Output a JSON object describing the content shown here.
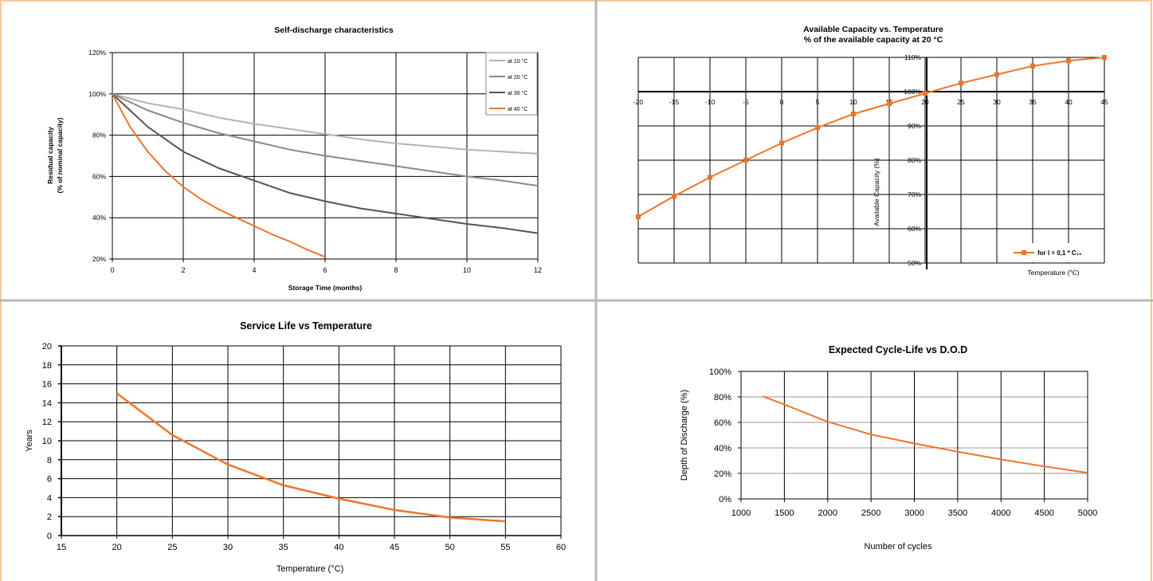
{
  "colors": {
    "border": "#f5c89a",
    "divider": "#b8b8b8",
    "grid": "#000000",
    "orange": "#f07428",
    "at10": "#b4b4b4",
    "at20": "#8a8a8a",
    "at30": "#555555"
  },
  "chart_data": [
    {
      "type": "line",
      "title": "Self-discharge characteristics",
      "xlabel": "Storage Time (months)",
      "ylabel": "Residual capacity",
      "ylabel2": "(% of nominal capacity)",
      "xlim": [
        0,
        12
      ],
      "ylim": [
        20,
        120
      ],
      "xticks": [
        0,
        2,
        4,
        6,
        8,
        10,
        12
      ],
      "xtick_labels": [
        "0",
        "2",
        "4",
        "6",
        "8",
        "10",
        "12"
      ],
      "yticks": [
        20,
        40,
        60,
        80,
        100,
        120
      ],
      "ytick_labels": [
        "20%",
        "40%",
        "60%",
        "80%",
        "100%",
        "120%"
      ],
      "grid": true,
      "legend_position": "top-right",
      "series": [
        {
          "name": "at 10 °C",
          "color_key": "at10",
          "x": [
            0,
            1,
            2,
            3,
            4,
            5,
            6,
            7,
            8,
            9,
            10,
            11,
            12
          ],
          "y": [
            100,
            95.5,
            92.5,
            88.5,
            85.5,
            83,
            80.5,
            78,
            76,
            74.5,
            73,
            72,
            71
          ]
        },
        {
          "name": "at 20 °C",
          "color_key": "at20",
          "x": [
            0,
            1,
            2,
            3,
            4,
            5,
            6,
            7,
            8,
            9,
            10,
            11,
            12
          ],
          "y": [
            100,
            92,
            86,
            81,
            77,
            73,
            70,
            67.5,
            65,
            62.5,
            60,
            58,
            55.5
          ]
        },
        {
          "name": "at 30 °C",
          "color_key": "at30",
          "x": [
            0,
            1,
            2,
            3,
            4,
            5,
            6,
            7,
            8,
            9,
            10,
            11,
            12
          ],
          "y": [
            100,
            84,
            72,
            64,
            58,
            52,
            48,
            44.5,
            42,
            39.5,
            37,
            35,
            32.5
          ]
        },
        {
          "name": "at 40 °C",
          "color_key": "orange",
          "x": [
            0,
            0.5,
            1,
            1.5,
            2,
            2.5,
            3,
            3.5,
            4,
            4.5,
            5,
            5.5,
            6
          ],
          "y": [
            100,
            84,
            72,
            62.5,
            55,
            49,
            44,
            40,
            36,
            32,
            28.5,
            24.5,
            21
          ]
        }
      ]
    },
    {
      "type": "line",
      "title": "Available Capacity vs. Temperature",
      "subtitle": "% of the available capacity at 20 °C",
      "xlabel": "Temperature (°C)",
      "ylabel": "Available Capacity (%)",
      "xlim": [
        -20,
        45
      ],
      "ylim": [
        50,
        110
      ],
      "xticks": [
        -20,
        -15,
        -10,
        -5,
        0,
        5,
        10,
        15,
        20,
        25,
        30,
        35,
        40,
        45
      ],
      "xtick_labels": [
        "-20",
        "-15",
        "-10",
        "-5",
        "0",
        "5",
        "10",
        "15",
        "20",
        "25",
        "30",
        "35",
        "40",
        "45"
      ],
      "yticks": [
        50,
        60,
        70,
        80,
        90,
        100,
        110
      ],
      "ytick_labels": [
        "50%",
        "60%",
        "70%",
        "80%",
        "90%",
        "100%",
        "110%"
      ],
      "grid": true,
      "legend_position": "bottom-right",
      "series": [
        {
          "name": "for I = 0,1 * C₁₀",
          "color_key": "orange",
          "x": [
            -20,
            -15,
            -10,
            -5,
            0,
            5,
            10,
            15,
            20,
            25,
            30,
            35,
            40,
            45
          ],
          "y": [
            63.5,
            69.5,
            75,
            80,
            85,
            89.5,
            93.5,
            96.5,
            99.5,
            102.5,
            105,
            107.5,
            109,
            110
          ]
        }
      ]
    },
    {
      "type": "line",
      "title": "Service Life vs Temperature",
      "xlabel": "Temperature (°C)",
      "ylabel": "Years",
      "xlim": [
        15,
        60
      ],
      "ylim": [
        0,
        20
      ],
      "xticks": [
        15,
        20,
        25,
        30,
        35,
        40,
        45,
        50,
        55,
        60
      ],
      "xtick_labels": [
        "15",
        "20",
        "25",
        "30",
        "35",
        "40",
        "45",
        "50",
        "55",
        "60"
      ],
      "yticks": [
        0,
        2,
        4,
        6,
        8,
        10,
        12,
        14,
        16,
        18,
        20
      ],
      "ytick_labels": [
        "0",
        "2",
        "4",
        "6",
        "8",
        "10",
        "12",
        "14",
        "16",
        "18",
        "20"
      ],
      "grid": true,
      "series": [
        {
          "color_key": "orange",
          "x": [
            20,
            25,
            30,
            35,
            40,
            45,
            50,
            55
          ],
          "y": [
            15,
            10.6,
            7.5,
            5.3,
            3.9,
            2.7,
            1.9,
            1.5
          ]
        }
      ]
    },
    {
      "type": "line",
      "title": "Expected Cycle-Life vs D.O.D",
      "xlabel": "Number of cycles",
      "ylabel": "Depth of Discharge (%)",
      "xlim": [
        1000,
        5000
      ],
      "ylim": [
        0,
        100
      ],
      "xticks": [
        1000,
        1500,
        2000,
        2500,
        3000,
        3500,
        4000,
        4500,
        5000
      ],
      "xtick_labels": [
        "1000",
        "1500",
        "2000",
        "2500",
        "3000",
        "3500",
        "4000",
        "4500",
        "5000"
      ],
      "yticks": [
        0,
        20,
        40,
        60,
        80,
        100
      ],
      "ytick_labels": [
        "0%",
        "20%",
        "40%",
        "60%",
        "80%",
        "100%"
      ],
      "grid": true,
      "series": [
        {
          "color_key": "orange",
          "x": [
            1250,
            1500,
            2000,
            2500,
            3000,
            3500,
            4000,
            4500,
            5000
          ],
          "y": [
            80.5,
            74,
            60.5,
            50.5,
            43.5,
            37,
            31,
            25.5,
            20.5
          ]
        }
      ]
    }
  ]
}
